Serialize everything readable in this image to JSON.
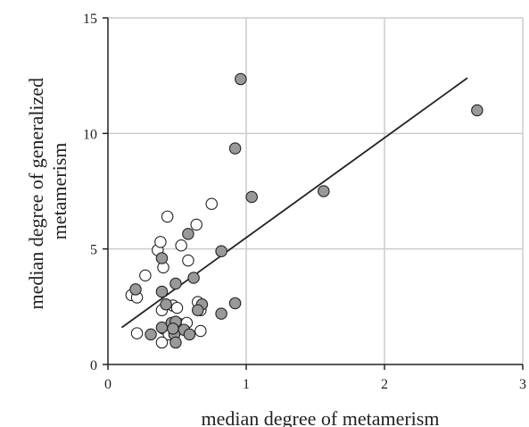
{
  "chart_data": {
    "type": "scatter",
    "xlabel": "median degree of metamerism",
    "ylabel_lines": [
      "median degree of generalized",
      "metamerism"
    ],
    "xlim": [
      0,
      3
    ],
    "ylim": [
      0,
      15
    ],
    "xticks": [
      0,
      1,
      2,
      3
    ],
    "yticks": [
      0,
      5,
      10,
      15
    ],
    "grid": true,
    "grid_color": "#cccccc",
    "filled_color": "#999999",
    "open_color": "#ffffff",
    "series": [
      {
        "marker": "open",
        "points": [
          [
            0.17,
            3.0
          ],
          [
            0.21,
            2.9
          ],
          [
            0.27,
            3.85
          ],
          [
            0.36,
            4.95
          ],
          [
            0.38,
            5.3
          ],
          [
            0.4,
            4.2
          ],
          [
            0.43,
            6.4
          ],
          [
            0.53,
            5.15
          ],
          [
            0.58,
            4.5
          ],
          [
            0.64,
            6.05
          ],
          [
            0.75,
            6.95
          ],
          [
            0.39,
            2.35
          ],
          [
            0.47,
            2.55
          ],
          [
            0.5,
            2.45
          ],
          [
            0.65,
            2.7
          ],
          [
            0.67,
            2.35
          ],
          [
            0.21,
            1.35
          ],
          [
            0.4,
            1.55
          ],
          [
            0.44,
            1.3
          ],
          [
            0.52,
            1.75
          ],
          [
            0.57,
            1.8
          ],
          [
            0.67,
            1.45
          ],
          [
            0.39,
            0.95
          ],
          [
            0.48,
            1.5
          ]
        ]
      },
      {
        "marker": "filled",
        "points": [
          [
            0.2,
            3.25
          ],
          [
            0.39,
            4.6
          ],
          [
            0.39,
            3.15
          ],
          [
            0.49,
            3.5
          ],
          [
            0.42,
            2.6
          ],
          [
            0.58,
            5.65
          ],
          [
            0.62,
            3.75
          ],
          [
            0.82,
            4.9
          ],
          [
            0.68,
            2.6
          ],
          [
            0.65,
            2.35
          ],
          [
            0.82,
            2.2
          ],
          [
            0.92,
            2.65
          ],
          [
            0.92,
            9.35
          ],
          [
            0.96,
            12.35
          ],
          [
            1.04,
            7.25
          ],
          [
            1.56,
            7.5
          ],
          [
            2.67,
            11.0
          ],
          [
            0.31,
            1.3
          ],
          [
            0.39,
            1.6
          ],
          [
            0.46,
            1.8
          ],
          [
            0.49,
            1.85
          ],
          [
            0.55,
            1.5
          ],
          [
            0.59,
            1.3
          ],
          [
            0.48,
            1.3
          ],
          [
            0.49,
            0.95
          ],
          [
            0.47,
            1.55
          ]
        ]
      }
    ],
    "regression": {
      "x1": 0.1,
      "y1": 1.6,
      "x2": 2.6,
      "y2": 12.4
    }
  }
}
